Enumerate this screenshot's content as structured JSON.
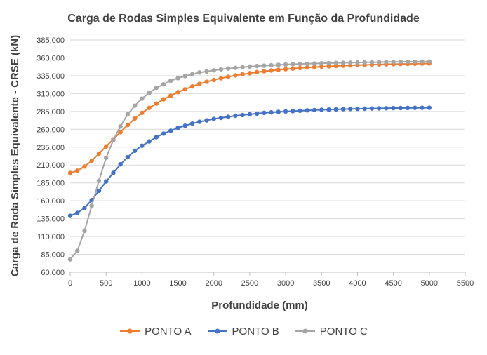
{
  "chart_data": {
    "type": "line",
    "title": "Carga de Rodas Simples Equivalente em Função da Profundidade",
    "xlabel": "Profundidade (mm)",
    "ylabel": "Carga de Roda Simples Equivalente - CRSE (kN)",
    "xlim": [
      0,
      5500
    ],
    "ylim": [
      60000,
      385000
    ],
    "x_ticks": [
      "0",
      "500",
      "1000",
      "1500",
      "2000",
      "2500",
      "3000",
      "3500",
      "4000",
      "4500",
      "5000",
      "5500"
    ],
    "y_ticks": [
      "60,000",
      "85,000",
      "110,000",
      "135,000",
      "160,000",
      "185,000",
      "210,000",
      "235,000",
      "260,000",
      "285,000",
      "310,000",
      "335,000",
      "360,000",
      "385,000"
    ],
    "grid": true,
    "legend_position": "bottom",
    "x": [
      0,
      100,
      200,
      300,
      400,
      500,
      600,
      700,
      800,
      900,
      1000,
      1100,
      1200,
      1300,
      1400,
      1500,
      1600,
      1700,
      1800,
      1900,
      2000,
      2100,
      2200,
      2300,
      2400,
      2500,
      2600,
      2700,
      2800,
      2900,
      3000,
      3100,
      3200,
      3300,
      3400,
      3500,
      3600,
      3700,
      3800,
      3900,
      4000,
      4100,
      4200,
      4300,
      4400,
      4500,
      4600,
      4700,
      4800,
      4900,
      5000
    ],
    "series": [
      {
        "name": "PONTO A",
        "color": "#ED7D31",
        "values": [
          199000,
          202000,
          208000,
          216000,
          226000,
          236000,
          246000,
          256000,
          266000,
          275000,
          283000,
          290000,
          296000,
          302000,
          307000,
          312000,
          316000,
          320000,
          323500,
          326500,
          329000,
          331500,
          333500,
          335500,
          337000,
          338500,
          340000,
          341200,
          342300,
          343300,
          344200,
          345000,
          345800,
          346500,
          347100,
          347700,
          348200,
          348700,
          349100,
          349500,
          349900,
          350200,
          350500,
          350800,
          351000,
          351200,
          351400,
          351600,
          351800,
          352000,
          352200
        ]
      },
      {
        "name": "PONTO B",
        "color": "#4472C4",
        "values": [
          139000,
          143000,
          150000,
          161000,
          174000,
          187000,
          199000,
          211000,
          221000,
          230000,
          237000,
          243000,
          249000,
          254000,
          258000,
          262000,
          265000,
          268000,
          270500,
          272500,
          274500,
          276000,
          277500,
          279000,
          280000,
          281000,
          282000,
          283000,
          283700,
          284400,
          285000,
          285500,
          286000,
          286500,
          286900,
          287300,
          287600,
          287900,
          288200,
          288500,
          288700,
          288900,
          289100,
          289300,
          289500,
          289700,
          289800,
          289900,
          290000,
          290100,
          290200
        ]
      },
      {
        "name": "PONTO C",
        "color": "#A5A5A5",
        "values": [
          78000,
          90000,
          118000,
          153000,
          188000,
          220000,
          245000,
          264000,
          281000,
          293000,
          303000,
          311000,
          318000,
          323000,
          328000,
          331500,
          334500,
          337000,
          339500,
          341000,
          342500,
          344000,
          345000,
          346000,
          347000,
          347800,
          348500,
          349100,
          349700,
          350200,
          350700,
          351100,
          351500,
          351800,
          352100,
          352400,
          352700,
          352900,
          353100,
          353300,
          353500,
          353700,
          353900,
          354000,
          354200,
          354300,
          354400,
          354500,
          354600,
          354700,
          354800
        ]
      }
    ]
  },
  "legend": {
    "items": [
      {
        "label": "PONTO A",
        "color": "#ED7D31"
      },
      {
        "label": "PONTO B",
        "color": "#4472C4"
      },
      {
        "label": "PONTO C",
        "color": "#A5A5A5"
      }
    ]
  }
}
